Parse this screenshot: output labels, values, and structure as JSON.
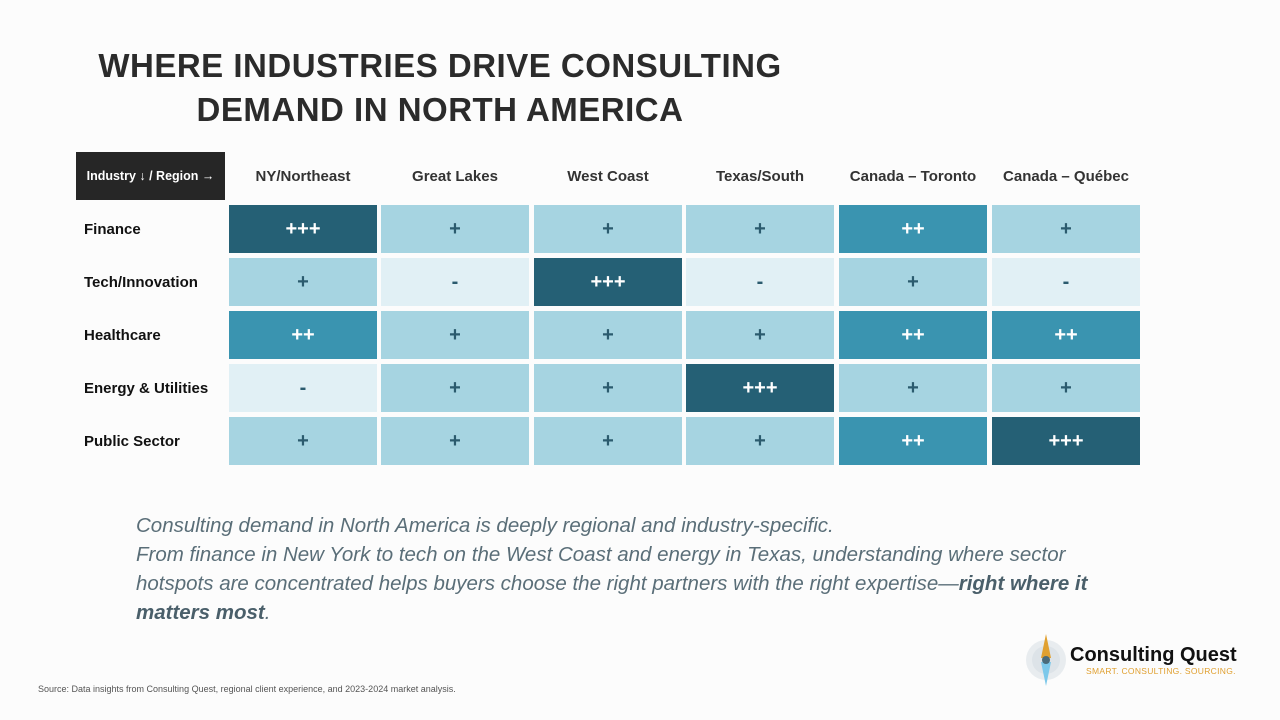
{
  "title": [
    "WHERE INDUSTRIES DRIVE CONSULTING",
    "DEMAND IN NORTH AMERICA"
  ],
  "table": {
    "corner": "Industry ↓ / Region →",
    "columns": [
      "NY/Northeast",
      "Great Lakes",
      "West Coast",
      "Texas/South",
      "Canada – Toronto",
      "Canada – Québec"
    ],
    "rows": [
      {
        "label": "Finance",
        "cells": [
          "+++",
          "+",
          "+",
          "+",
          "++",
          "+"
        ]
      },
      {
        "label": "Tech/Innovation",
        "cells": [
          "+",
          "-",
          "+++",
          "-",
          "+",
          "-"
        ]
      },
      {
        "label": "Healthcare",
        "cells": [
          "++",
          "+",
          "+",
          "+",
          "++",
          "++"
        ]
      },
      {
        "label": "Energy & Utilities",
        "cells": [
          "-",
          "+",
          "+",
          "+++",
          "+",
          "+"
        ]
      },
      {
        "label": "Public Sector",
        "cells": [
          "+",
          "+",
          "+",
          "+",
          "++",
          "+++"
        ]
      }
    ],
    "level_colors": {
      "+++": "#256075",
      "++": "#3a94b0",
      "+": "#a6d4e1",
      "-": "#e1f0f5"
    }
  },
  "paragraph": {
    "line1": "Consulting demand in North America is deeply regional and industry-specific.",
    "line2": "From finance in New York to tech on the West Coast and energy in Texas, understanding where sector hotspots are concentrated helps buyers choose the right partners with the right expertise—",
    "emphasis": "right where it matters most",
    "end": "."
  },
  "source": "Source: Data insights from Consulting Quest, regional client experience, and 2023-2024 market analysis.",
  "logo": {
    "name": "Consulting Quest",
    "tagline": "SMART. CONSULTING. SOURCING.",
    "icon": "compass-icon"
  }
}
